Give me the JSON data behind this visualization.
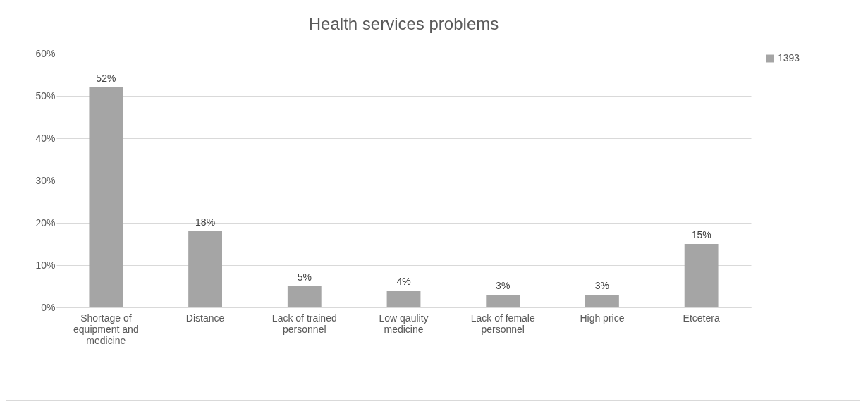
{
  "chart_data": {
    "type": "bar",
    "title": "Health services problems",
    "categories": [
      "Shortage of equipment and medicine",
      "Distance",
      "Lack of trained personnel",
      "Low qaulity medicine",
      "Lack of female personnel",
      "High price",
      "Etcetera"
    ],
    "series": [
      {
        "name": "1393",
        "color": "#a5a5a5",
        "values": [
          52,
          18,
          5,
          4,
          3,
          3,
          15
        ],
        "value_labels": [
          "52%",
          "18%",
          "5%",
          "4%",
          "3%",
          "3%",
          "15%"
        ]
      }
    ],
    "ylim": [
      0,
      60
    ],
    "yticks": [
      {
        "value": 0,
        "label": "0%"
      },
      {
        "value": 10,
        "label": "10%"
      },
      {
        "value": 20,
        "label": "20%"
      },
      {
        "value": 30,
        "label": "30%"
      },
      {
        "value": 40,
        "label": "40%"
      },
      {
        "value": 50,
        "label": "50%"
      },
      {
        "value": 60,
        "label": "60%"
      }
    ],
    "grid": "y",
    "legend": "right"
  }
}
